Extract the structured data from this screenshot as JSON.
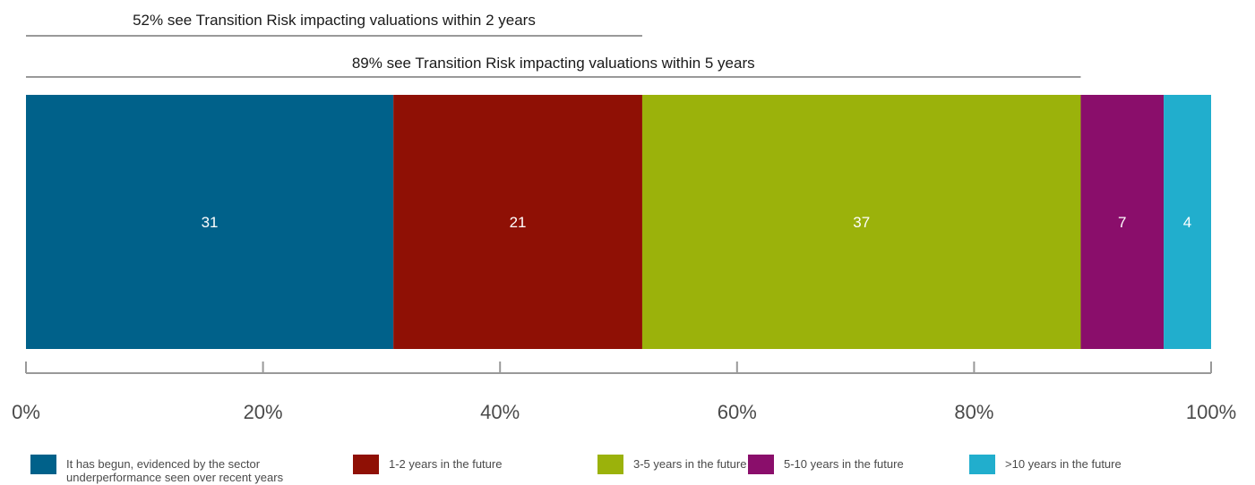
{
  "chart_data": {
    "type": "bar",
    "orientation": "horizontal-stacked-100",
    "annotations": [
      {
        "text": "52% see Transition Risk impacting valuations within 2 years",
        "span": [
          0,
          52
        ]
      },
      {
        "text": "89% see Transition Risk impacting valuations within 5 years",
        "span": [
          0,
          89
        ]
      }
    ],
    "series": [
      {
        "name": "It has begun, evidenced by the sector underperformance seen over recent years",
        "value": 31,
        "label": "31",
        "color": "#00618a"
      },
      {
        "name": "1-2 years in the future",
        "value": 21,
        "label": "21",
        "color": "#8f1005"
      },
      {
        "name": "3-5 years in the future",
        "value": 37,
        "label": "37",
        "color": "#9bb20b"
      },
      {
        "name": "5-10 years in the future",
        "value": 7,
        "label": "7",
        "color": "#8a0e6b"
      },
      {
        "name": ">10 years in the future",
        "value": 4,
        "label": "4",
        "color": "#21aecd"
      }
    ],
    "legend_lines": [
      [
        "It has begun, evidenced by the sector",
        "underperformance seen over recent years"
      ],
      [
        "1-2 years in the future"
      ],
      [
        "3-5 years in the future"
      ],
      [
        "5-10 years in the future"
      ],
      [
        ">10 years in the future"
      ]
    ],
    "x_ticks": [
      {
        "value": 0,
        "label": "0%"
      },
      {
        "value": 20,
        "label": "20%"
      },
      {
        "value": 40,
        "label": "40%"
      },
      {
        "value": 60,
        "label": "60%"
      },
      {
        "value": 80,
        "label": "80%"
      },
      {
        "value": 100,
        "label": "100%"
      }
    ],
    "xlim": [
      0,
      100
    ],
    "grid": false,
    "legend_position": "bottom",
    "annotation_line_color": "#999999",
    "axis_color": "#999999"
  }
}
